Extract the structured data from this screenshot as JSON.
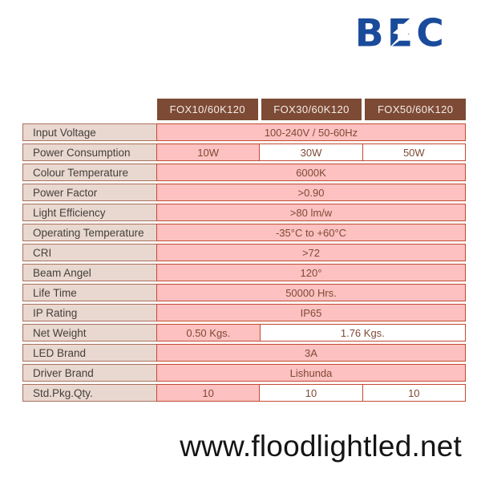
{
  "logo": {
    "text": "BEC",
    "color": "#1a4b9b",
    "icon": "lightning-bolt"
  },
  "table": {
    "columns": [
      "FOX10/60K120",
      "FOX30/60K120",
      "FOX50/60K120"
    ],
    "rows": [
      {
        "label": "Input Voltage",
        "cells": [
          {
            "text": "100-240V / 50-60Hz",
            "span": 3,
            "bg": "pink"
          }
        ]
      },
      {
        "label": "Power Consumption",
        "cells": [
          {
            "text": "10W",
            "span": 1,
            "bg": "pink"
          },
          {
            "text": "30W",
            "span": 1,
            "bg": "white"
          },
          {
            "text": "50W",
            "span": 1,
            "bg": "white"
          }
        ]
      },
      {
        "label": "Colour Temperature",
        "cells": [
          {
            "text": "6000K",
            "span": 3,
            "bg": "pink"
          }
        ]
      },
      {
        "label": "Power Factor",
        "cells": [
          {
            "text": ">0.90",
            "span": 3,
            "bg": "pink"
          }
        ]
      },
      {
        "label": "Light Efficiency",
        "cells": [
          {
            "text": ">80 lm/w",
            "span": 3,
            "bg": "pink"
          }
        ]
      },
      {
        "label": "Operating Temperature",
        "cells": [
          {
            "text": "-35°C to +60°C",
            "span": 3,
            "bg": "pink"
          }
        ]
      },
      {
        "label": "CRI",
        "cells": [
          {
            "text": ">72",
            "span": 3,
            "bg": "pink"
          }
        ]
      },
      {
        "label": "Beam Angel",
        "cells": [
          {
            "text": "120°",
            "span": 3,
            "bg": "pink"
          }
        ]
      },
      {
        "label": "Life Time",
        "cells": [
          {
            "text": "50000 Hrs.",
            "span": 3,
            "bg": "pink"
          }
        ]
      },
      {
        "label": "IP Rating",
        "cells": [
          {
            "text": "IP65",
            "span": 3,
            "bg": "pink"
          }
        ]
      },
      {
        "label": "Net Weight",
        "cells": [
          {
            "text": "0.50 Kgs.",
            "span": 1,
            "bg": "pink"
          },
          {
            "text": "1.76 Kgs.",
            "span": 2,
            "bg": "white"
          }
        ]
      },
      {
        "label": "LED Brand",
        "cells": [
          {
            "text": "3A",
            "span": 3,
            "bg": "pink"
          }
        ]
      },
      {
        "label": "Driver Brand",
        "cells": [
          {
            "text": "Lishunda",
            "span": 3,
            "bg": "pink"
          }
        ]
      },
      {
        "label": "Std.Pkg.Qty.",
        "cells": [
          {
            "text": "10",
            "span": 1,
            "bg": "pink"
          },
          {
            "text": "10",
            "span": 1,
            "bg": "white"
          },
          {
            "text": "10",
            "span": 1,
            "bg": "white"
          }
        ]
      }
    ]
  },
  "footer": {
    "website": "www.floodlightled.net"
  },
  "colors": {
    "header_bg": "#7d4a35",
    "header_text": "#f3ece6",
    "pink": "#fcc1c0",
    "label_bg": "#e9d8d0",
    "border": "#c24a33",
    "label_border": "#a9705a",
    "label_text": "#44403c",
    "value_text": "#7d4a35",
    "logo_blue": "#1a4b9b",
    "footer_text": "#141414"
  }
}
